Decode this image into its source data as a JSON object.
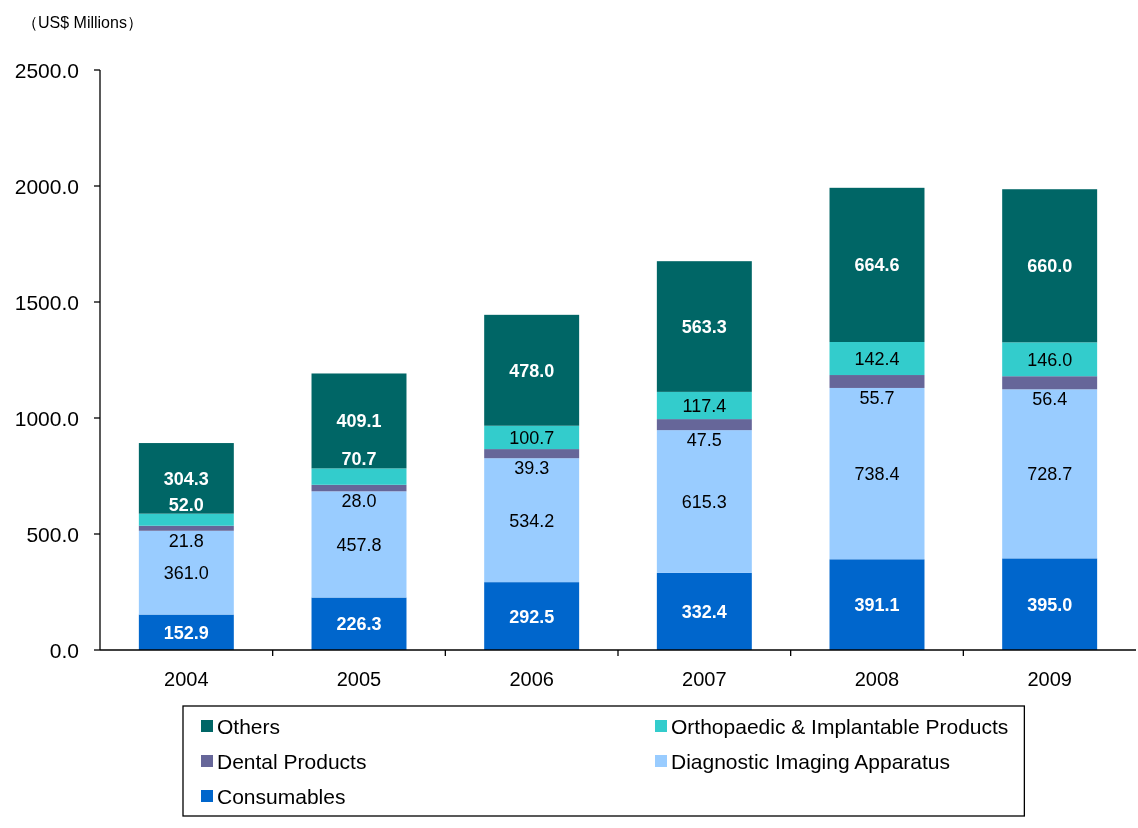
{
  "chart_data": {
    "type": "bar",
    "stacked": true,
    "ylabel": "（US$ Millions）",
    "categories": [
      "2004",
      "2005",
      "2006",
      "2007",
      "2008",
      "2009"
    ],
    "series": [
      {
        "name": "Consumables",
        "color": "#0066cc",
        "values": [
          152.9,
          226.3,
          292.5,
          332.4,
          391.1,
          395.0
        ],
        "value_labels": [
          "152.9",
          "226.3",
          "292.5",
          "332.4",
          "391.1",
          "395.0"
        ]
      },
      {
        "name": "Diagnostic Imaging Apparatus",
        "color": "#99ccff",
        "values": [
          361.0,
          457.8,
          534.2,
          615.3,
          738.4,
          728.7
        ],
        "value_labels": [
          "361.0",
          "457.8",
          "534.2",
          "615.3",
          "738.4",
          "728.7"
        ]
      },
      {
        "name": "Dental Products",
        "color": "#666699",
        "values": [
          21.8,
          28.0,
          39.3,
          47.5,
          55.7,
          56.4
        ],
        "value_labels": [
          "21.8",
          "28.0",
          "39.3",
          "47.5",
          "55.7",
          "56.4"
        ]
      },
      {
        "name": "Orthopaedic & Implantable Products",
        "color": "#33cccc",
        "values": [
          52.0,
          70.7,
          100.7,
          117.4,
          142.4,
          146.0
        ],
        "value_labels": [
          "52.0",
          "70.7",
          "100.7",
          "117.4",
          "142.4",
          "146.0"
        ]
      },
      {
        "name": "Others",
        "color": "#006666",
        "values": [
          304.3,
          409.1,
          478.0,
          563.3,
          664.6,
          660.0
        ],
        "value_labels": [
          "304.3",
          "409.1",
          "478.0",
          "563.3",
          "664.6",
          "660.0"
        ]
      }
    ],
    "ylim": [
      0,
      2500
    ],
    "yticks": [
      {
        "value": 0,
        "label": "0.0"
      },
      {
        "value": 500,
        "label": "500.0"
      },
      {
        "value": 1000,
        "label": "1000.0"
      },
      {
        "value": 1500,
        "label": "1500.0"
      },
      {
        "value": 2000,
        "label": "2000.0"
      },
      {
        "value": 2500,
        "label": "2500.0"
      }
    ],
    "legend": "bottom"
  }
}
